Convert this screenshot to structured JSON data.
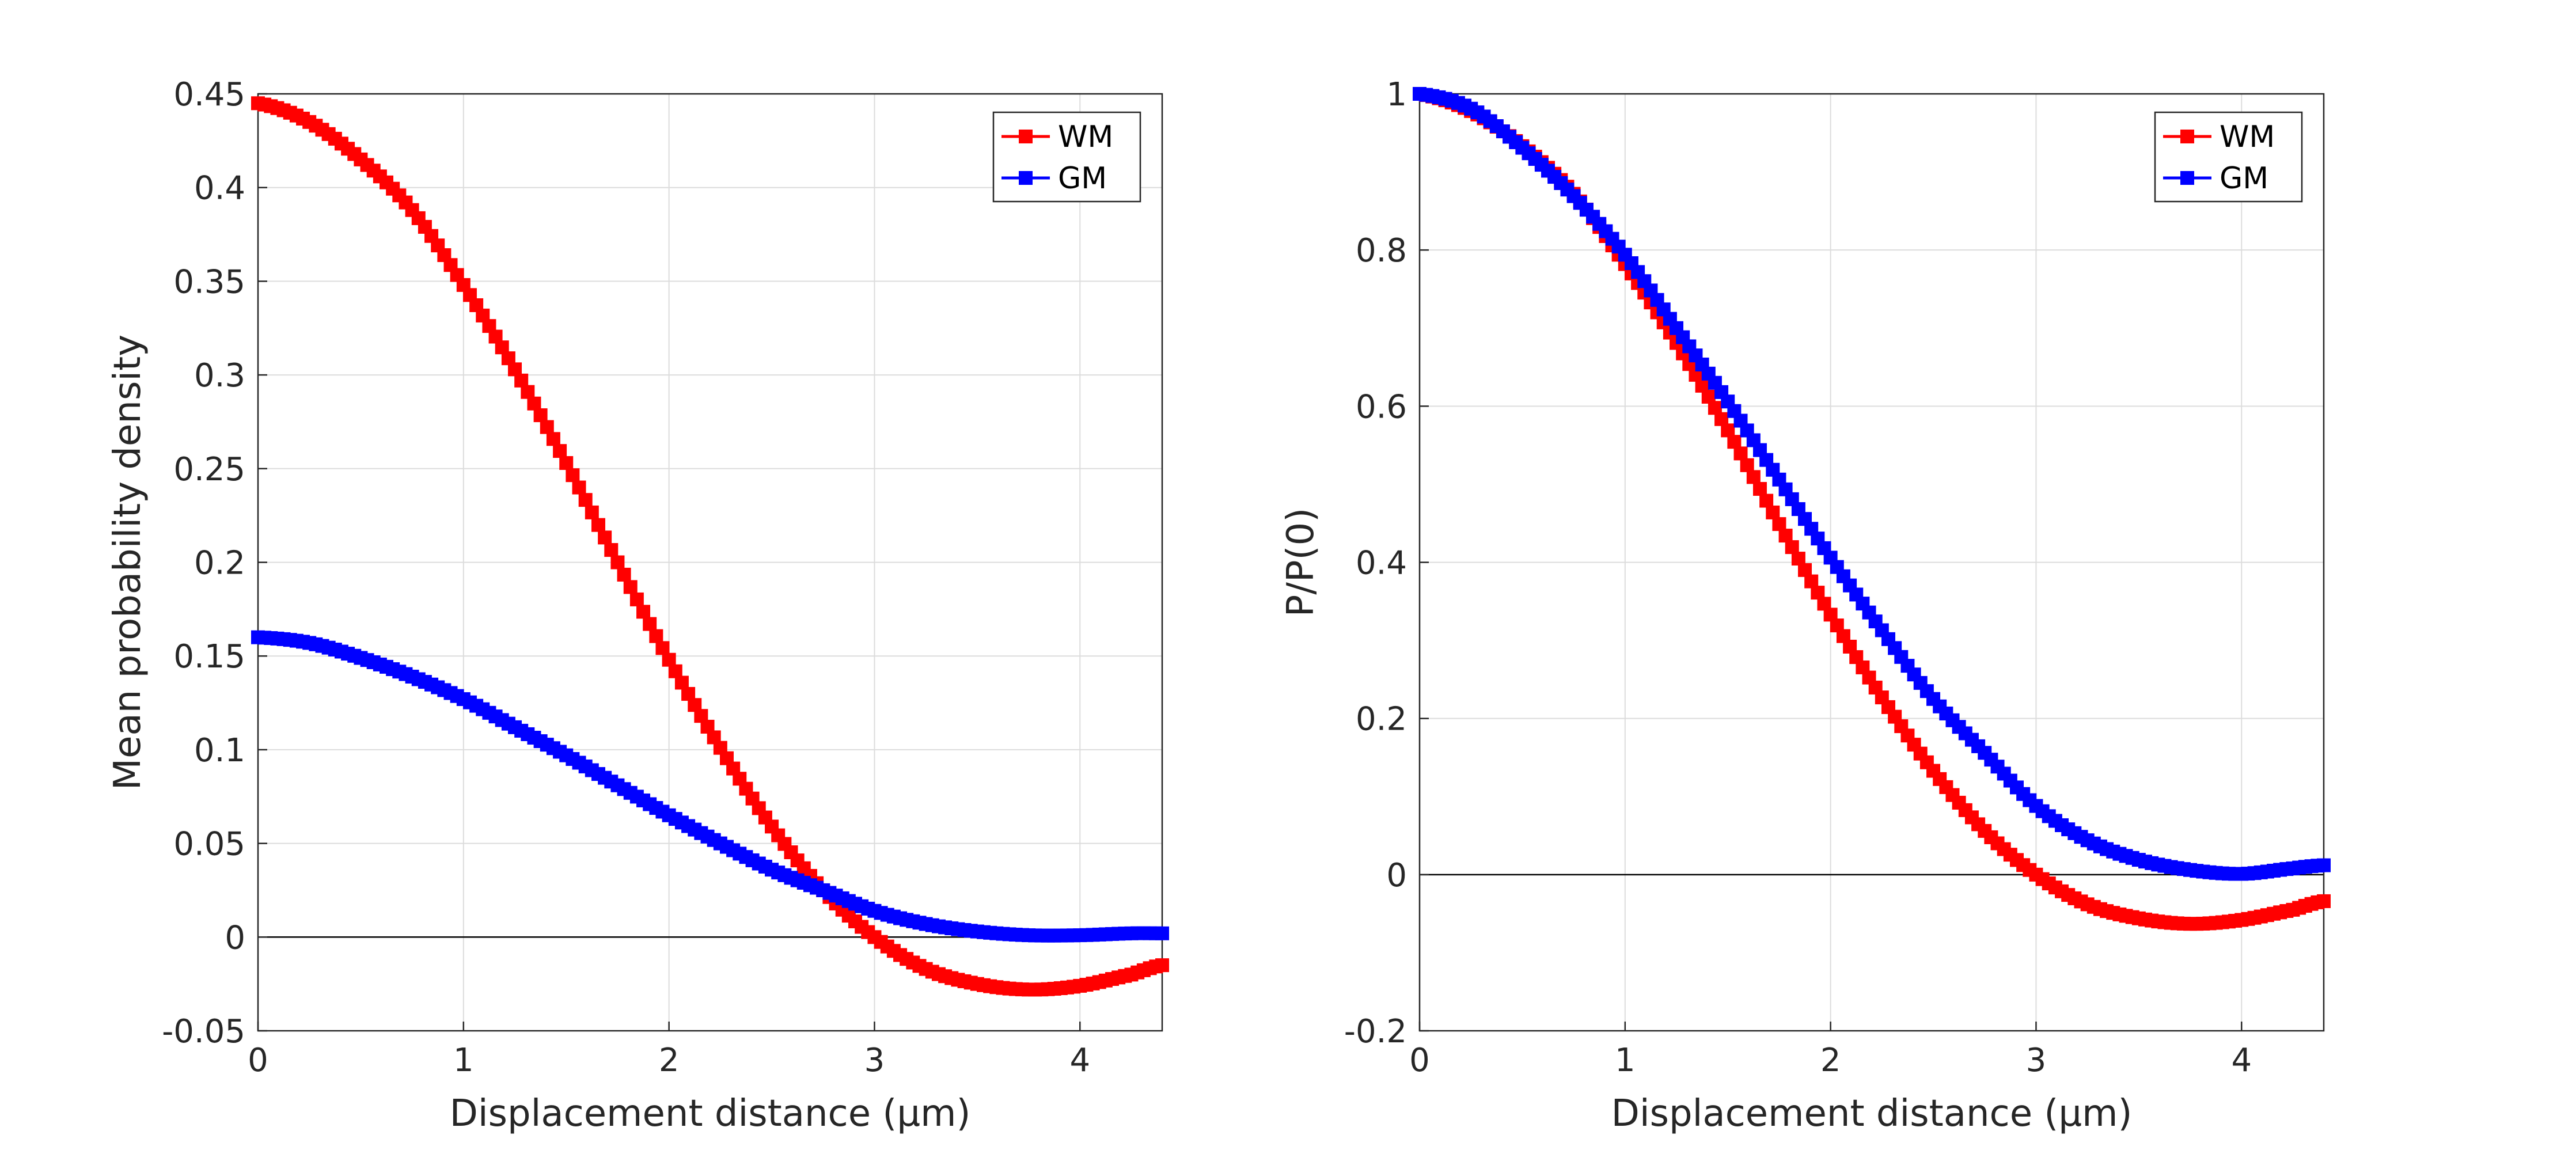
{
  "chart_data": [
    {
      "type": "line",
      "xlabel": "Displacement distance (μm)",
      "ylabel": "Mean probability density",
      "xlim": [
        0,
        4.4
      ],
      "ylim": [
        -0.05,
        0.45
      ],
      "xticks": [
        "0",
        "1",
        "2",
        "3",
        "4"
      ],
      "yticks": [
        "-0.05",
        "0",
        "0.05",
        "0.1",
        "0.15",
        "0.2",
        "0.25",
        "0.3",
        "0.35",
        "0.4",
        "0.45"
      ],
      "grid": true,
      "legend_position": "top-right",
      "zero_line": true,
      "marker": "square",
      "x": [
        0,
        0.25,
        0.5,
        0.75,
        1.0,
        1.25,
        1.5,
        1.75,
        2.0,
        2.25,
        2.5,
        2.75,
        3.0,
        3.25,
        3.5,
        3.75,
        4.0,
        4.25,
        4.4
      ],
      "series": [
        {
          "name": "WM",
          "color": "#ff0000",
          "values": [
            0.445,
            0.435,
            0.415,
            0.388,
            0.348,
            0.303,
            0.253,
            0.2,
            0.148,
            0.101,
            0.059,
            0.025,
            0.0,
            -0.017,
            -0.025,
            -0.028,
            -0.026,
            -0.02,
            -0.015
          ]
        },
        {
          "name": "GM",
          "color": "#0000ff",
          "values": [
            0.16,
            0.157,
            0.149,
            0.139,
            0.127,
            0.112,
            0.097,
            0.081,
            0.065,
            0.05,
            0.036,
            0.025,
            0.014,
            0.007,
            0.003,
            0.001,
            0.001,
            0.002,
            0.002
          ]
        }
      ]
    },
    {
      "type": "line",
      "xlabel": "Displacement distance (μm)",
      "ylabel": "P/P(0)",
      "xlim": [
        0,
        4.4
      ],
      "ylim": [
        -0.2,
        1.0
      ],
      "xticks": [
        "0",
        "1",
        "2",
        "3",
        "4"
      ],
      "yticks": [
        "-0.2",
        "0",
        "0.2",
        "0.4",
        "0.6",
        "0.8",
        "1"
      ],
      "grid": true,
      "legend_position": "top-right",
      "zero_line": true,
      "marker": "square",
      "x": [
        0,
        0.25,
        0.5,
        0.75,
        1.0,
        1.25,
        1.5,
        1.75,
        2.0,
        2.25,
        2.5,
        2.75,
        3.0,
        3.25,
        3.5,
        3.75,
        4.0,
        4.25,
        4.4
      ],
      "series": [
        {
          "name": "WM",
          "color": "#ff0000",
          "values": [
            1.0,
            0.978,
            0.933,
            0.872,
            0.782,
            0.681,
            0.569,
            0.449,
            0.333,
            0.227,
            0.133,
            0.056,
            0.0,
            -0.038,
            -0.056,
            -0.063,
            -0.058,
            -0.045,
            -0.034
          ]
        },
        {
          "name": "GM",
          "color": "#0000ff",
          "values": [
            1.0,
            0.981,
            0.931,
            0.869,
            0.794,
            0.7,
            0.606,
            0.506,
            0.406,
            0.313,
            0.225,
            0.156,
            0.088,
            0.044,
            0.019,
            0.006,
            0.001,
            0.008,
            0.012
          ]
        }
      ]
    }
  ]
}
